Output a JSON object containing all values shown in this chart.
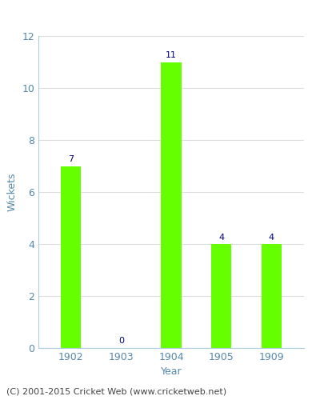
{
  "years": [
    "1902",
    "1903",
    "1904",
    "1905",
    "1909"
  ],
  "wickets": [
    7,
    0,
    11,
    4,
    4
  ],
  "bar_color": "#66ff00",
  "bar_edge_color": "#66ff00",
  "label_color": "#000080",
  "title": "",
  "xlabel": "Year",
  "ylabel": "Wickets",
  "ylim": [
    0,
    12
  ],
  "yticks": [
    0,
    2,
    4,
    6,
    8,
    10,
    12
  ],
  "grid_color": "#dddddd",
  "tick_label_color": "#5588aa",
  "axis_label_color": "#5588aa",
  "spine_color": "#aaccdd",
  "footer": "(C) 2001-2015 Cricket Web (www.cricketweb.net)",
  "footer_color": "#444444",
  "label_fontsize": 8,
  "axis_fontsize": 9,
  "footer_fontsize": 8,
  "bar_width": 0.4
}
